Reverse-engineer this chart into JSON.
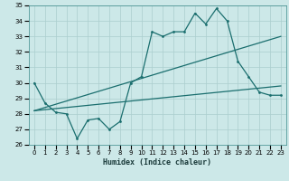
{
  "xlabel": "Humidex (Indice chaleur)",
  "bg_color": "#cce8e8",
  "grid_color": "#aacece",
  "line_color": "#1a6e6e",
  "xlim": [
    -0.5,
    23.5
  ],
  "ylim": [
    26,
    35
  ],
  "xticks": [
    0,
    1,
    2,
    3,
    4,
    5,
    6,
    7,
    8,
    9,
    10,
    11,
    12,
    13,
    14,
    15,
    16,
    17,
    18,
    19,
    20,
    21,
    22,
    23
  ],
  "yticks": [
    26,
    27,
    28,
    29,
    30,
    31,
    32,
    33,
    34,
    35
  ],
  "line1_x": [
    0,
    1,
    2,
    3,
    4,
    5,
    6,
    7,
    8,
    9,
    10,
    11,
    12,
    13,
    14,
    15,
    16,
    17,
    18,
    19,
    20,
    21,
    22,
    23
  ],
  "line1_y": [
    30.0,
    28.7,
    28.1,
    28.0,
    26.4,
    27.6,
    27.7,
    27.0,
    27.5,
    30.0,
    30.4,
    33.3,
    33.0,
    33.3,
    33.3,
    34.5,
    33.8,
    34.8,
    34.0,
    31.4,
    30.4,
    29.4,
    29.2,
    29.2
  ],
  "line2_x": [
    0,
    23
  ],
  "line2_y": [
    28.2,
    33.0
  ],
  "line3_x": [
    0,
    23
  ],
  "line3_y": [
    28.2,
    29.8
  ]
}
